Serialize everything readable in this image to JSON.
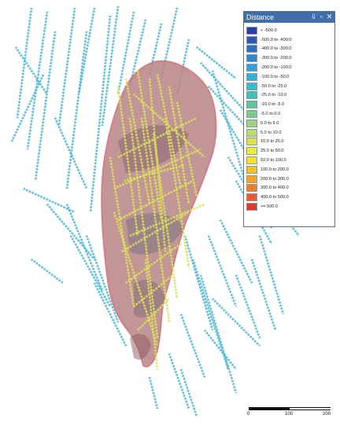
{
  "legend": {
    "title": "Distance",
    "buttons": {
      "pin": "⇩",
      "restore": "▫",
      "close": "✕"
    },
    "items": [
      {
        "label": "< -500.0",
        "color": "#2b3fa6"
      },
      {
        "label": "-500.0 to -400.0",
        "color": "#2e55b6"
      },
      {
        "label": "-400.0 to -300.0",
        "color": "#2f6fc4"
      },
      {
        "label": "-300.0 to -200.0",
        "color": "#2f89cf"
      },
      {
        "label": "-200.0 to -100.0",
        "color": "#31a0d6"
      },
      {
        "label": "-100.0 to -50.0",
        "color": "#37b2d5"
      },
      {
        "label": "-50.0 to -25.0",
        "color": "#3bbcc6"
      },
      {
        "label": "-25.0 to -10.0",
        "color": "#44bfb1"
      },
      {
        "label": "-10.0 to -5.0",
        "color": "#5cc49d"
      },
      {
        "label": "-5.0 to 0.0",
        "color": "#7fcb8c"
      },
      {
        "label": "0.0 to 5.0",
        "color": "#9bd27c"
      },
      {
        "label": "5.0 to 10.0",
        "color": "#bcda64"
      },
      {
        "label": "10.0 to 25.0",
        "color": "#d8e24c"
      },
      {
        "label": "25.0 to 50.0",
        "color": "#eaea3a"
      },
      {
        "label": "50.0 to 100.0",
        "color": "#f6e22c"
      },
      {
        "label": "100.0 to 200.0",
        "color": "#f5c426"
      },
      {
        "label": "200.0 to 300.0",
        "color": "#f4a324"
      },
      {
        "label": "300.0 to 400.0",
        "color": "#f17f26"
      },
      {
        "label": "400.0 to 500.0",
        "color": "#ec5a2a"
      },
      {
        "label": ">= 500.0",
        "color": "#e23a2c"
      }
    ]
  },
  "scale_bar": {
    "labels": [
      "0",
      "100",
      "200"
    ]
  },
  "colors": {
    "drillhole_outside": "#4fb8d6",
    "drillhole_inside": "#dbe25a",
    "solid_body": "#b88486",
    "solid_edge": "#c86a72"
  }
}
